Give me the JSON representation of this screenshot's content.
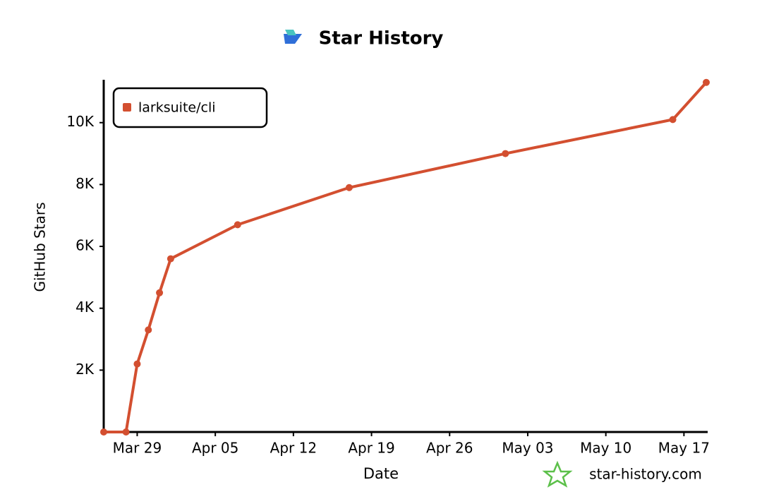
{
  "chart_data": {
    "type": "line",
    "title": "Star History",
    "x_label": "Date",
    "y_label": "GitHub Stars",
    "watermark": "star-history.com",
    "x": [
      "Mar 26",
      "Mar 28",
      "Mar 29",
      "Mar 30",
      "Mar 31",
      "Apr 01",
      "Apr 07",
      "Apr 17",
      "May 01",
      "May 16",
      "May 19"
    ],
    "series": [
      {
        "name": "larksuite/cli",
        "color": "#d34f30",
        "values": [
          0,
          0,
          2200,
          3300,
          4500,
          5600,
          6700,
          7900,
          9000,
          10100,
          11300
        ]
      }
    ],
    "xlim": [
      "Mar 26",
      "May 19"
    ],
    "xticks": [
      "Mar 29",
      "Apr 05",
      "Apr 12",
      "Apr 19",
      "Apr 26",
      "May 03",
      "May 10",
      "May 17"
    ],
    "ylim": [
      0,
      11500
    ],
    "yticks": [
      {
        "value": 2000,
        "label": "2K"
      },
      {
        "value": 4000,
        "label": "4K"
      },
      {
        "value": 6000,
        "label": "6K"
      },
      {
        "value": 8000,
        "label": "8K"
      },
      {
        "value": 10000,
        "label": "10K"
      }
    ],
    "legend": "top-left"
  }
}
